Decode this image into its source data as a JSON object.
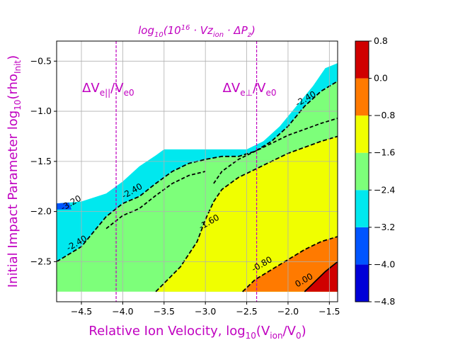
{
  "chart_data": {
    "type": "contour",
    "title": "log10(10^16 · Vz_ion · ΔP_z)",
    "title_parts": {
      "pre": "log",
      "sub": "10",
      "mid": "(10",
      "sup": "16",
      "post": " · Vz",
      "sub2": "ion",
      "tail": " · ΔP",
      "sub3": "z",
      "end": ")"
    },
    "xlabel": {
      "pre": "Relative Ion Velocity,  log",
      "sub": "10",
      "mid": "(V",
      "sub2": "ion",
      "tail": "/V",
      "sub3": "0",
      "end": ")"
    },
    "ylabel": {
      "pre": "Initial Impact Parameter log",
      "sub": "10",
      "mid": "(rho",
      "sub2": "Init",
      "end": ")"
    },
    "xlim": [
      -4.8,
      -1.4
    ],
    "ylim": [
      -2.9,
      -0.3
    ],
    "x_ticks": [
      -4.5,
      -4.0,
      -3.5,
      -3.0,
      -2.5,
      -2.0,
      -1.5
    ],
    "x_tick_labels": [
      "−4.5",
      "−4.0",
      "−3.5",
      "−3.0",
      "−2.5",
      "−2.0",
      "−1.5"
    ],
    "y_ticks": [
      -0.5,
      -1.0,
      -1.5,
      -2.0,
      -2.5
    ],
    "y_tick_labels": [
      "−0.5",
      "−1.0",
      "−1.5",
      "−2.0",
      "−2.5"
    ],
    "grid": true,
    "colorbar": {
      "levels": [
        -4.8,
        -4.0,
        -3.2,
        -2.4,
        -1.6,
        -0.8,
        0.0,
        0.8
      ],
      "labels": [
        "−4.8",
        "−4.0",
        "−3.2",
        "−2.4",
        "−1.6",
        "−0.8",
        "0.0",
        "0.8"
      ],
      "colors": [
        "#0000d8",
        "#0055ff",
        "#00e8ee",
        "#7dff7a",
        "#f0ff00",
        "#ff7a00",
        "#d00000"
      ]
    },
    "vertical_lines": [
      {
        "x": -4.08,
        "label": "ΔVe||/Ve0",
        "label_pre": "ΔV",
        "label_sub": "e||",
        "label_post": "/V",
        "label_sub2": "e0"
      },
      {
        "x": -2.38,
        "label": "ΔVe⊥/Ve0",
        "label_pre": "ΔV",
        "label_sub": "e⊥",
        "label_post": "/V",
        "label_sub2": "e0"
      }
    ],
    "contour_labels": [
      {
        "text": "-2.40",
        "x": -1.77,
        "y": -0.9
      },
      {
        "text": "-1.60",
        "x": -2.94,
        "y": -2.13
      },
      {
        "text": "-0.80",
        "x": -2.3,
        "y": -2.55
      },
      {
        "text": "0.00",
        "x": -1.79,
        "y": -2.71
      },
      {
        "text": "-2.40",
        "x": -4.54,
        "y": -2.34
      },
      {
        "text": "-2.40",
        "x": -3.87,
        "y": -1.82
      },
      {
        "text": "-3.20",
        "x": -4.61,
        "y": -1.94
      }
    ],
    "regions": {
      "top_edge": [
        [
          -4.8,
          -1.92
        ],
        [
          -4.5,
          -1.9
        ],
        [
          -4.2,
          -1.82
        ],
        [
          -4.0,
          -1.7
        ],
        [
          -3.8,
          -1.55
        ],
        [
          -3.6,
          -1.44
        ],
        [
          -3.5,
          -1.38
        ],
        [
          -2.5,
          -1.38
        ],
        [
          -2.3,
          -1.3
        ],
        [
          -2.1,
          -1.15
        ],
        [
          -1.9,
          -0.95
        ],
        [
          -1.7,
          -0.75
        ],
        [
          -1.55,
          -0.57
        ],
        [
          -1.4,
          -0.52
        ]
      ],
      "cyan_floor": [
        [
          -4.8,
          -2.5
        ],
        [
          -4.5,
          -2.35
        ],
        [
          -4.2,
          -2.05
        ],
        [
          -4.0,
          -1.92
        ],
        [
          -3.8,
          -1.85
        ],
        [
          -3.6,
          -1.72
        ],
        [
          -3.4,
          -1.6
        ],
        [
          -3.2,
          -1.52
        ],
        [
          -3.0,
          -1.48
        ],
        [
          -2.8,
          -1.45
        ],
        [
          -2.6,
          -1.45
        ],
        [
          -2.4,
          -1.4
        ],
        [
          -2.2,
          -1.3
        ],
        [
          -2.0,
          -1.15
        ],
        [
          -1.8,
          -0.95
        ],
        [
          -1.6,
          -0.8
        ],
        [
          -1.4,
          -0.7
        ]
      ],
      "yellow_top": [
        [
          -3.6,
          -2.8
        ],
        [
          -3.3,
          -2.55
        ],
        [
          -3.1,
          -2.3
        ],
        [
          -3.0,
          -2.08
        ],
        [
          -2.9,
          -1.9
        ],
        [
          -2.8,
          -1.78
        ],
        [
          -2.6,
          -1.66
        ],
        [
          -2.4,
          -1.58
        ],
        [
          -2.2,
          -1.5
        ],
        [
          -2.0,
          -1.42
        ],
        [
          -1.8,
          -1.36
        ],
        [
          -1.6,
          -1.3
        ],
        [
          -1.4,
          -1.25
        ]
      ],
      "orange_top": [
        [
          -2.55,
          -2.8
        ],
        [
          -2.4,
          -2.68
        ],
        [
          -2.2,
          -2.58
        ],
        [
          -2.0,
          -2.48
        ],
        [
          -1.8,
          -2.38
        ],
        [
          -1.6,
          -2.3
        ],
        [
          -1.4,
          -2.25
        ]
      ],
      "red_top": [
        [
          -1.8,
          -2.8
        ],
        [
          -1.7,
          -2.72
        ],
        [
          -1.55,
          -2.6
        ],
        [
          -1.4,
          -2.5
        ]
      ],
      "dark_blue_patch": [
        [
          -4.8,
          -1.92
        ],
        [
          -4.65,
          -1.91
        ],
        [
          -4.62,
          -1.98
        ],
        [
          -4.8,
          -1.98
        ]
      ],
      "bottom": -2.8
    }
  }
}
